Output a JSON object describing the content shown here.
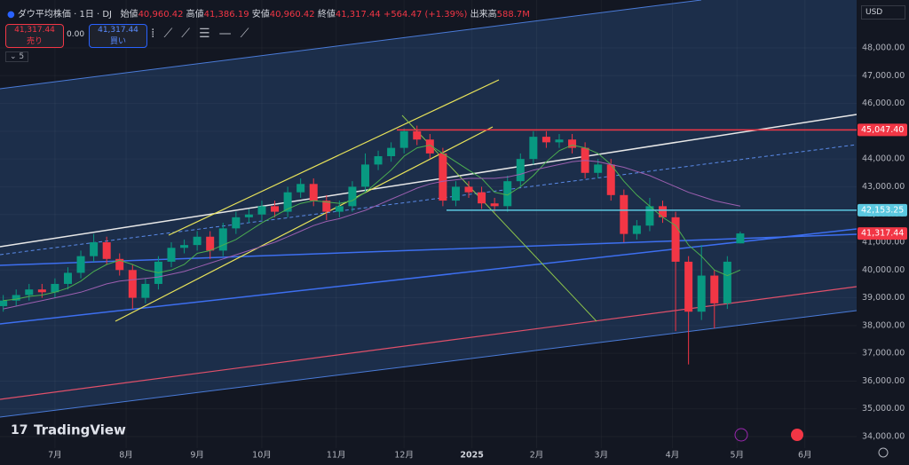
{
  "header": {
    "symbol": "ダウ平均株価 · 1日 · DJ",
    "open_label": "始値",
    "open": "40,960.42",
    "high_label": "高値",
    "high": "41,386.19",
    "low_label": "安値",
    "low": "40,960.42",
    "close_label": "終値",
    "close": "41,317.44",
    "change": "+564.47 (+1.39%)",
    "volume_label": "出来高",
    "volume": "588.7M",
    "sell_price": "41,317.44",
    "sell_label": "売り",
    "spread": "0.00",
    "buy_price": "41,317.44",
    "buy_label": "買い",
    "indicator_count": "5",
    "currency": "USD",
    "brand": "TradingView"
  },
  "chart_data": {
    "type": "candlestick",
    "up_color": "#089981",
    "down_color": "#f23645",
    "grid": true,
    "x": [
      -16,
      -12,
      -8,
      -4,
      0,
      4,
      8,
      12,
      16,
      20,
      24,
      28,
      32,
      36,
      40,
      44,
      48,
      52,
      56,
      60,
      64,
      68,
      72,
      76,
      80,
      84,
      88,
      92,
      96,
      100,
      104,
      108,
      112,
      116,
      120,
      124,
      128,
      132,
      136,
      140,
      144,
      148,
      152,
      156,
      160,
      164,
      168,
      172,
      176,
      180,
      184,
      188,
      192,
      196,
      200,
      204,
      208,
      212
    ],
    "open": [
      38700,
      38900,
      39100,
      39300,
      39200,
      39500,
      39900,
      40500,
      41000,
      40400,
      40000,
      39000,
      39500,
      40300,
      40800,
      40900,
      41200,
      40700,
      41500,
      41900,
      42000,
      42300,
      42100,
      42800,
      43100,
      42500,
      42100,
      42300,
      43000,
      43800,
      44100,
      44400,
      45000,
      44700,
      44200,
      42500,
      43000,
      42800,
      42400,
      42300,
      43200,
      44000,
      44800,
      44600,
      44700,
      44400,
      43500,
      43800,
      42700,
      41300,
      41600,
      42300,
      41900,
      40300,
      38500,
      39800,
      38800,
      40960.42
    ],
    "high": [
      39100,
      39300,
      39500,
      39500,
      39700,
      40100,
      40700,
      41300,
      41200,
      40600,
      40200,
      39700,
      40500,
      41000,
      41100,
      41400,
      41400,
      41700,
      42100,
      42200,
      42500,
      42500,
      43000,
      43300,
      43300,
      42700,
      42500,
      43200,
      44200,
      44300,
      44600,
      45100,
      45200,
      44900,
      44400,
      43200,
      43200,
      43000,
      42600,
      43400,
      44200,
      45000,
      45000,
      44900,
      44900,
      44600,
      44000,
      44000,
      42900,
      41800,
      42600,
      42500,
      42100,
      40500,
      40900,
      40000,
      40500,
      41386.19
    ],
    "low": [
      38500,
      38700,
      38900,
      39000,
      39000,
      39300,
      39700,
      40300,
      40200,
      39800,
      38600,
      38800,
      39300,
      40100,
      40600,
      40700,
      40400,
      40500,
      41300,
      41700,
      41800,
      41900,
      41900,
      42600,
      42300,
      41800,
      41900,
      42100,
      42800,
      43600,
      43900,
      44200,
      44500,
      44000,
      42300,
      42300,
      42600,
      42200,
      42100,
      42100,
      43000,
      43800,
      44400,
      44400,
      44200,
      43300,
      43300,
      42500,
      41000,
      41100,
      41400,
      41700,
      37800,
      36600,
      38200,
      37900,
      38600,
      40960.42
    ],
    "close": [
      38900,
      39100,
      39300,
      39200,
      39500,
      39900,
      40500,
      41000,
      40400,
      40000,
      39000,
      39500,
      40300,
      40800,
      40900,
      41200,
      40700,
      41500,
      41900,
      42000,
      42300,
      42100,
      42800,
      43100,
      42500,
      42100,
      42300,
      43000,
      43800,
      44100,
      44400,
      45000,
      44700,
      44200,
      42500,
      43000,
      42800,
      42400,
      42300,
      43200,
      44000,
      44800,
      44600,
      44700,
      44400,
      43500,
      43800,
      42700,
      41300,
      41600,
      42300,
      41900,
      40300,
      38500,
      39800,
      38800,
      40300,
      41317.44
    ],
    "ma": [
      {
        "color": "#4caf50",
        "values": [
          38900,
          38950,
          39050,
          39100,
          39200,
          39350,
          39600,
          39950,
          40200,
          40350,
          40200,
          40000,
          39900,
          40000,
          40200,
          40600,
          40700,
          40900,
          41100,
          41400,
          41700,
          41950,
          42200,
          42400,
          42500,
          42450,
          42400,
          42500,
          42800,
          43200,
          43600,
          44100,
          44400,
          44500,
          44200,
          43900,
          43600,
          43300,
          42800,
          42700,
          43000,
          43400,
          43900,
          44300,
          44500,
          44400,
          44200,
          43800,
          43200,
          42700,
          42300,
          41900,
          41600,
          40900,
          40500,
          40000,
          39800,
          40000
        ]
      },
      {
        "color": "#9c5fb0",
        "values": [
          38600,
          38700,
          38800,
          38900,
          39000,
          39100,
          39200,
          39350,
          39500,
          39600,
          39650,
          39700,
          39750,
          39850,
          39950,
          40100,
          40250,
          40400,
          40550,
          40700,
          40850,
          41000,
          41200,
          41400,
          41600,
          41750,
          41850,
          42000,
          42150,
          42350,
          42550,
          42750,
          42950,
          43100,
          43200,
          43250,
          43300,
          43300,
          43300,
          43350,
          43450,
          43600,
          43700,
          43800,
          43900,
          43950,
          43900,
          43800,
          43700,
          43550,
          43400,
          43200,
          43000,
          42800,
          42650,
          42500,
          42400,
          42300
        ]
      }
    ],
    "price_lines": [
      {
        "value": 45047.4,
        "label": "45,047.40",
        "color": "#f23645"
      },
      {
        "value": 42153.25,
        "label": "42,153.25",
        "color": "#5bc8e0"
      },
      {
        "value": 41317.44,
        "label": "41,317.44",
        "color": "#f23645"
      }
    ],
    "xlim": [
      -17,
      248
    ],
    "ylim": [
      33585,
      49726
    ],
    "xticks": [
      {
        "value": 0,
        "label": "7月"
      },
      {
        "value": 22,
        "label": "8月"
      },
      {
        "value": 44,
        "label": "9月"
      },
      {
        "value": 64,
        "label": "10月"
      },
      {
        "value": 87,
        "label": "11月"
      },
      {
        "value": 108,
        "label": "12月"
      },
      {
        "value": 129,
        "label": "2025"
      },
      {
        "value": 149,
        "label": "2月"
      },
      {
        "value": 169,
        "label": "3月"
      },
      {
        "value": 191,
        "label": "4月"
      },
      {
        "value": 211,
        "label": "5月"
      },
      {
        "value": 232,
        "label": "6月"
      }
    ],
    "yticks": [
      {
        "value": 34000,
        "label": "34,000.00"
      },
      {
        "value": 35000,
        "label": "35,000.00"
      },
      {
        "value": 36000,
        "label": "36,000.00"
      },
      {
        "value": 37000,
        "label": "37,000.00"
      },
      {
        "value": 38000,
        "label": "38,000.00"
      },
      {
        "value": 39000,
        "label": "39,000.00"
      },
      {
        "value": 40000,
        "label": "40,000.00"
      },
      {
        "value": 41000,
        "label": "41,000.00"
      },
      {
        "value": 42000,
        "label": "42,000.00"
      },
      {
        "value": 43000,
        "label": "43,000.00"
      },
      {
        "value": 44000,
        "label": "44,000.00"
      },
      {
        "value": 45000,
        "label": "45,000.00"
      },
      {
        "value": 46000,
        "label": "46,000.00"
      },
      {
        "value": 47000,
        "label": "47,000.00"
      },
      {
        "value": 48000,
        "label": "48,000.00"
      }
    ]
  }
}
